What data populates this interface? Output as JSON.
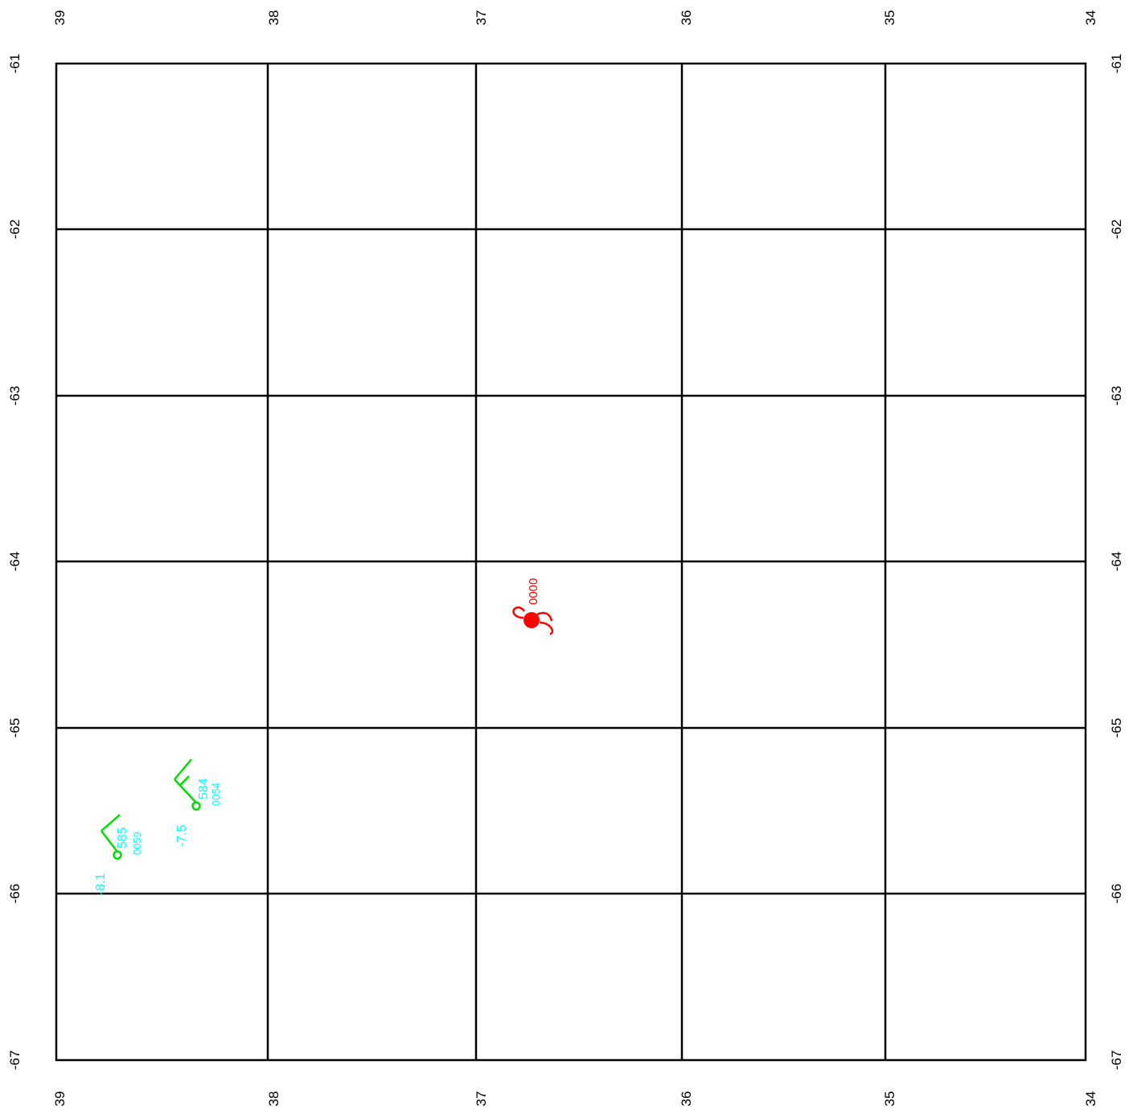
{
  "map": {
    "grid": {
      "columns": 5,
      "rows": 6,
      "color": "#000000"
    },
    "top_labels": [
      "39",
      "38",
      "37",
      "36",
      "35",
      "34"
    ],
    "bottom_labels": [
      "39",
      "38",
      "37",
      "36",
      "35",
      "34"
    ],
    "left_labels": [
      "-61",
      "-62",
      "-63",
      "-64",
      "-65",
      "-66",
      "-67"
    ],
    "right_labels": [
      "-61",
      "-62",
      "-63",
      "-64",
      "-65",
      "-66",
      "-67"
    ],
    "storm": {
      "icon": "tropical-cyclone-icon",
      "label": "0000",
      "color": "#ff0000"
    },
    "stations": [
      {
        "icon": "wind-barb-icon",
        "value": "585",
        "code": "0059",
        "temp": "-8.1",
        "barb_color": "#00dd00",
        "text_color": "#00ffff"
      },
      {
        "icon": "wind-barb-icon",
        "value": "584",
        "code": "0054",
        "temp": "-7.5",
        "barb_color": "#00dd00",
        "text_color": "#00ffff"
      }
    ]
  }
}
